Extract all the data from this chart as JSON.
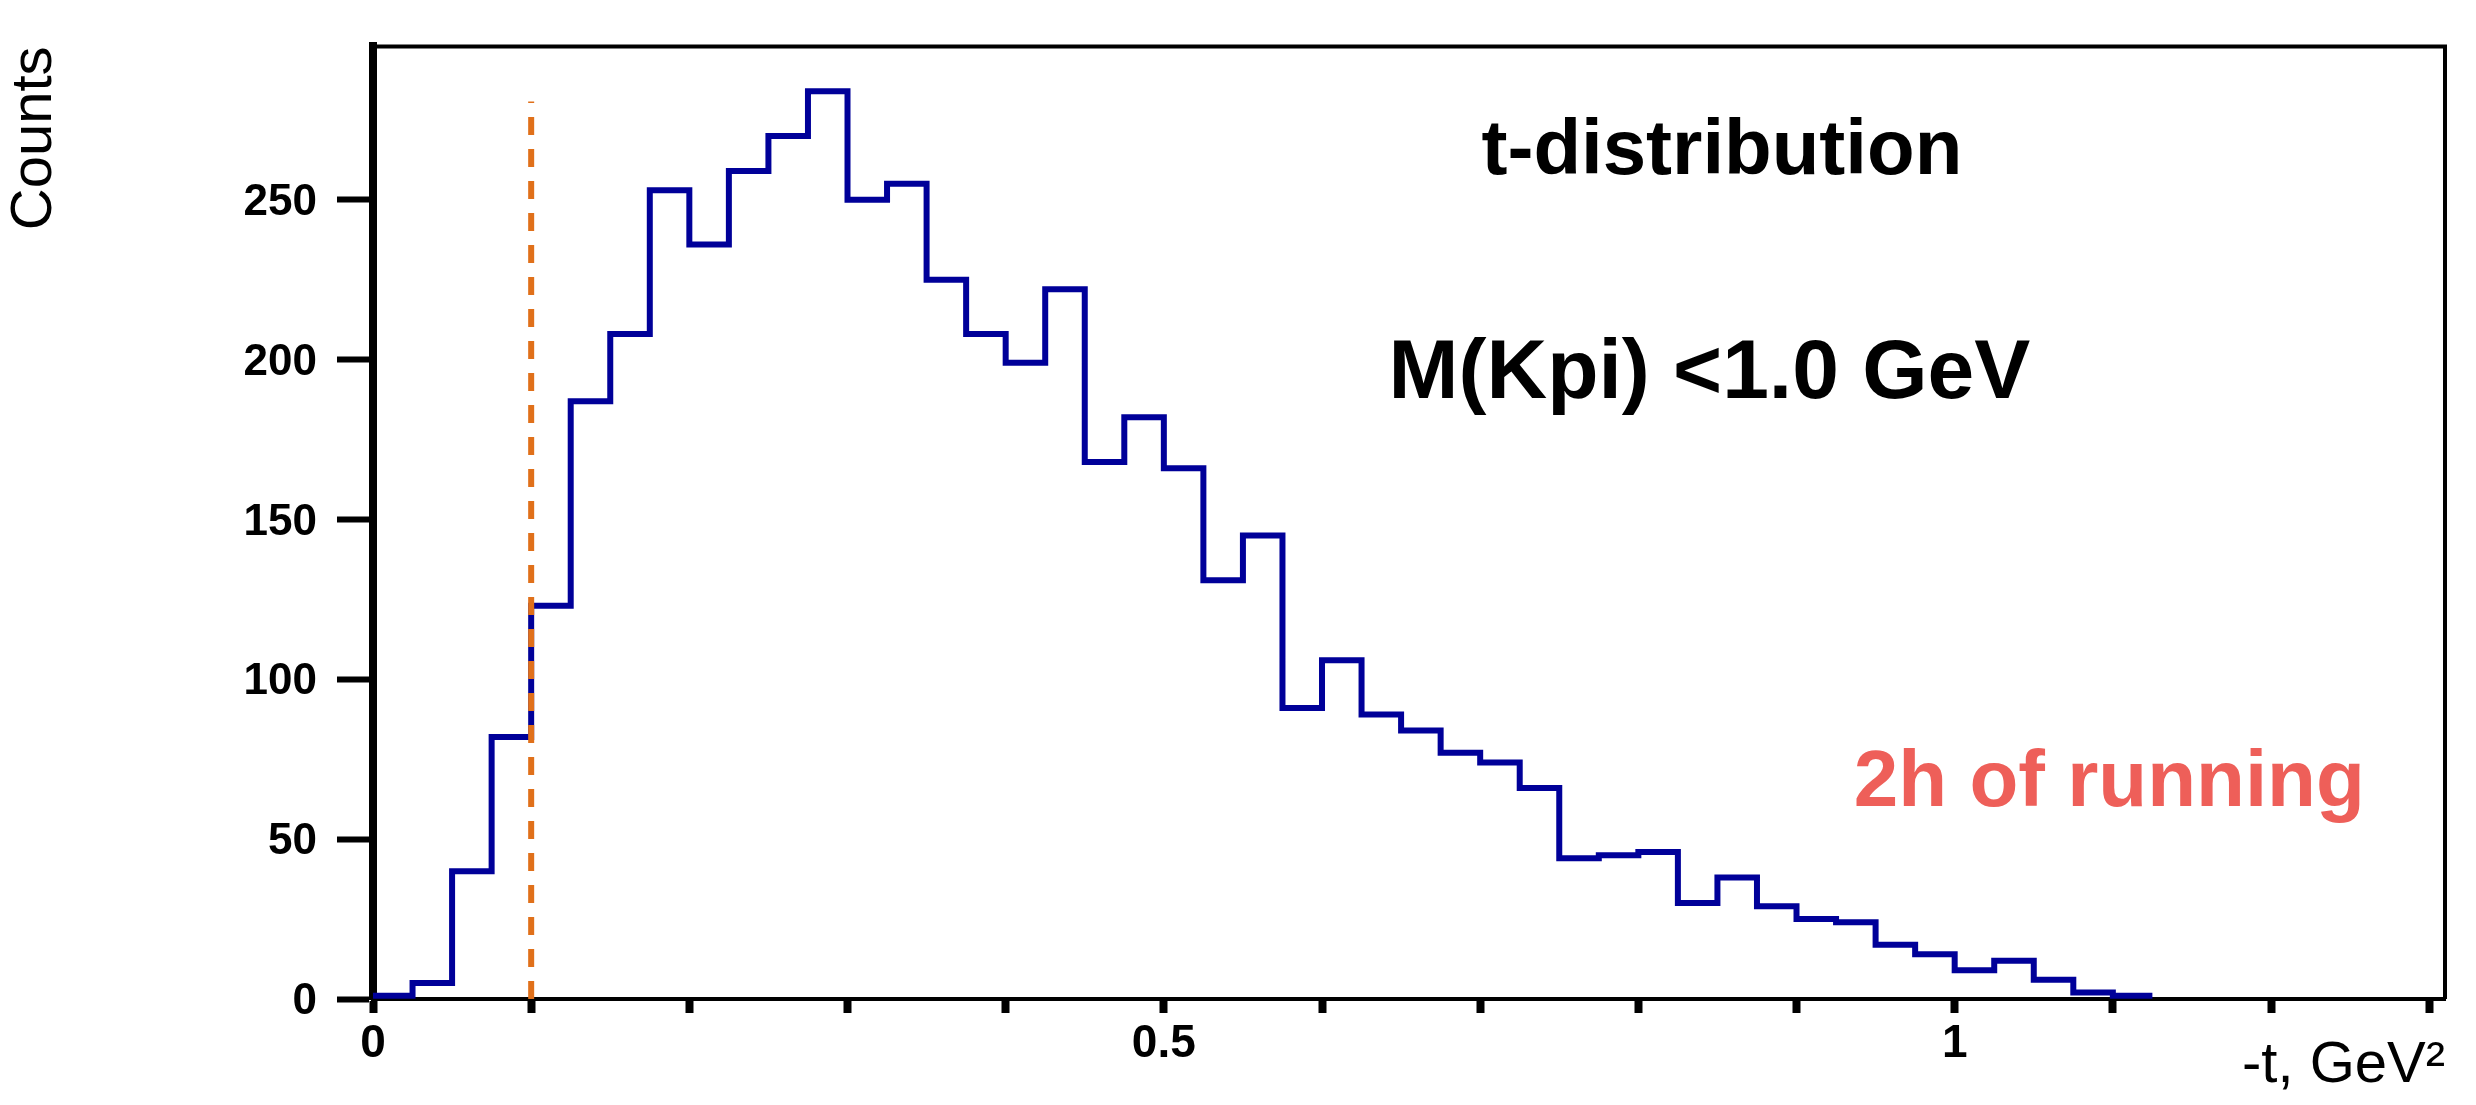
{
  "chart_data": {
    "type": "histogram",
    "title": "t-distribution",
    "xlabel": "-t, GeV²",
    "ylabel": "Counts",
    "annotations": [
      "M(Kpi) <1.0 GeV",
      "2h of running"
    ],
    "bins": [
      0,
      0.025,
      0.05,
      0.075,
      0.1,
      0.125,
      0.15,
      0.175,
      0.2,
      0.225,
      0.25,
      0.275,
      0.3,
      0.325,
      0.35,
      0.375,
      0.4,
      0.425,
      0.45,
      0.475,
      0.5,
      0.525,
      0.55,
      0.575,
      0.6,
      0.625,
      0.65,
      0.675,
      0.7,
      0.725,
      0.75,
      0.775,
      0.8,
      0.825,
      0.85,
      0.875,
      0.9,
      0.925,
      0.95,
      0.975,
      1.0,
      1.025,
      1.05,
      1.075,
      1.1,
      1.125
    ],
    "values": [
      1,
      5,
      40,
      82,
      123,
      187,
      208,
      253,
      236,
      259,
      270,
      284,
      250,
      255,
      225,
      208,
      199,
      222,
      168,
      182,
      166,
      131,
      145,
      91,
      106,
      89,
      84,
      77,
      74,
      66,
      44,
      45,
      46,
      30,
      38,
      29,
      25,
      24,
      17,
      14,
      9,
      12,
      6,
      2,
      1
    ],
    "color": "#000099",
    "xlim": [
      0,
      1.31
    ],
    "xticks": [
      {
        "value": 0,
        "label": "0"
      },
      {
        "value": 0.1,
        "label": null
      },
      {
        "value": 0.2,
        "label": null
      },
      {
        "value": 0.3,
        "label": null
      },
      {
        "value": 0.4,
        "label": null
      },
      {
        "value": 0.5,
        "label": "0.5"
      },
      {
        "value": 0.6,
        "label": null
      },
      {
        "value": 0.7,
        "label": null
      },
      {
        "value": 0.8,
        "label": null
      },
      {
        "value": 0.9,
        "label": null
      },
      {
        "value": 1,
        "label": "1"
      },
      {
        "value": 1.1,
        "label": null
      },
      {
        "value": 1.2,
        "label": null
      },
      {
        "value": 1.3,
        "label": null
      }
    ],
    "ylim": [
      0,
      298
    ],
    "yticks": [
      0,
      50,
      100,
      150,
      200,
      250
    ],
    "ref_lines": [
      {
        "axis": "x",
        "value": 0.1,
        "color": "#e0701a",
        "line_style": "dashed"
      }
    ],
    "grid": false,
    "legend": false
  }
}
